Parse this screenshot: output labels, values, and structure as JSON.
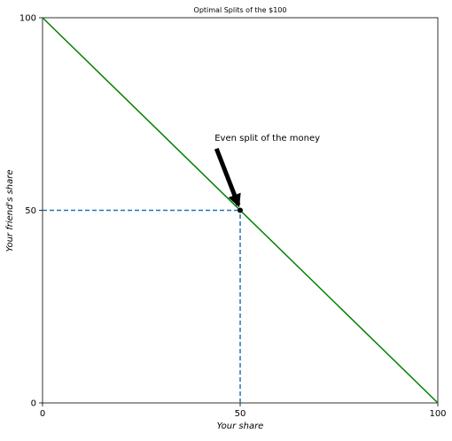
{
  "chart_data": {
    "type": "line",
    "title": "Optimal Splits of the $100",
    "xlabel": "Your share",
    "ylabel": "Your friend's share",
    "xlim": [
      0,
      100
    ],
    "ylim": [
      0,
      100
    ],
    "xticks": [
      0,
      50,
      100
    ],
    "yticks": [
      0,
      50,
      100
    ],
    "xtick_labels": [
      "0",
      "50",
      "100"
    ],
    "ytick_labels": [
      "0",
      "50",
      "100"
    ],
    "grid": false,
    "series": [
      {
        "x": [
          0,
          100
        ],
        "y": [
          100,
          0
        ],
        "color": "#008000",
        "style": "solid"
      }
    ],
    "reference_lines": [
      {
        "orientation": "horizontal",
        "value": 50,
        "from": 0,
        "to": 50,
        "color": "#1f77b4",
        "style": "dashed"
      },
      {
        "orientation": "vertical",
        "value": 50,
        "from": 0,
        "to": 50,
        "color": "#1f77b4",
        "style": "dashed"
      }
    ],
    "points": [
      {
        "x": 50,
        "y": 50,
        "color": "#000000"
      }
    ],
    "annotations": [
      {
        "text": "Even split of the money",
        "arrow_from": [
          44,
          66
        ],
        "arrow_to": [
          50,
          50
        ]
      }
    ]
  }
}
